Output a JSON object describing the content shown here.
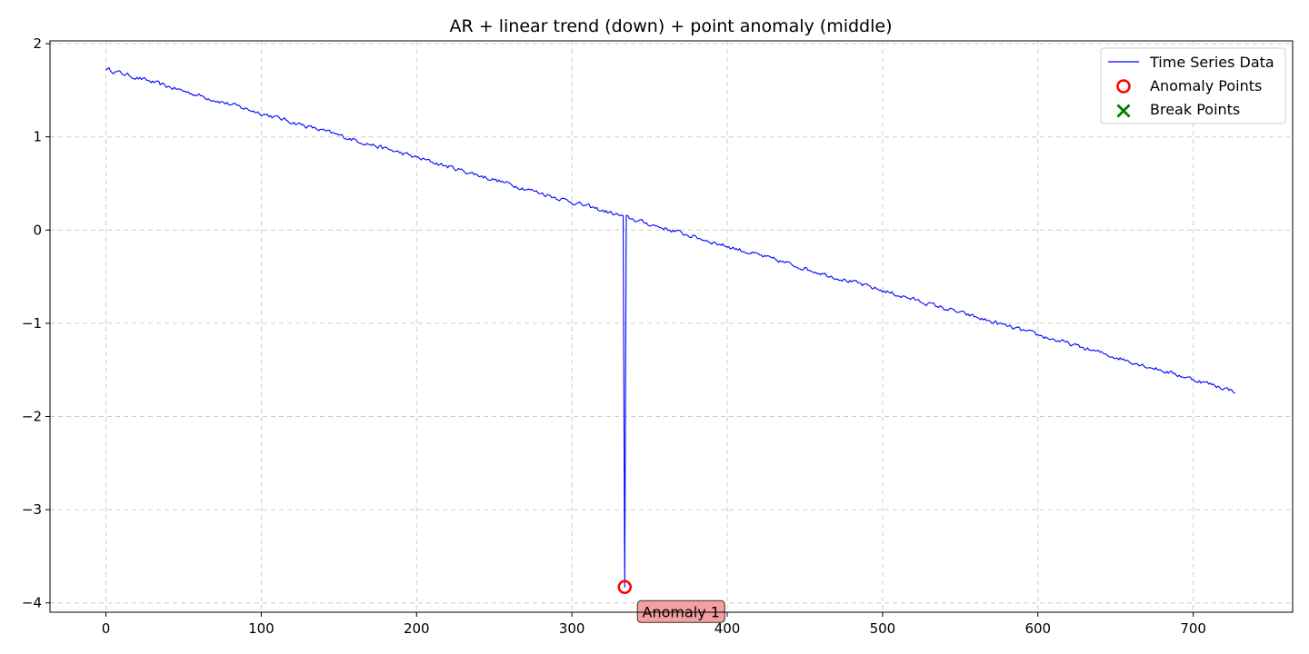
{
  "chart_data": {
    "type": "line",
    "title": "AR + linear trend (down) + point anomaly (middle)",
    "xlabel": "",
    "ylabel": "",
    "xlim": [
      -36,
      764
    ],
    "ylim": [
      -4.1,
      2.03
    ],
    "xticks": [
      0,
      100,
      200,
      300,
      400,
      500,
      600,
      700
    ],
    "yticks": [
      2,
      1,
      0,
      -1,
      -2,
      -3,
      -4
    ],
    "ytick_labels": [
      "2",
      "1",
      "0",
      "−1",
      "−2",
      "−3",
      "−4"
    ],
    "grid": true,
    "legend_position": "top-right",
    "series": [
      {
        "name": "Time Series Data",
        "color": "#0000ff",
        "n": 728,
        "trend": {
          "start": 1.73,
          "end": -1.73
        },
        "noise_amplitude": 0.02,
        "values": [],
        "x": []
      }
    ],
    "anomaly_points": [
      {
        "x": 334,
        "y": -3.83,
        "label": "Anomaly 1"
      }
    ],
    "break_points": [],
    "legend": {
      "series_label": "Time Series Data",
      "anomaly_label": "Anomaly Points",
      "break_label": "Break Points"
    },
    "colors": {
      "line": "#0000ff",
      "anomaly": "#ff0000",
      "break": "#008000",
      "annotation_fill": "#f4a0a0",
      "grid": "#cccccc"
    }
  }
}
